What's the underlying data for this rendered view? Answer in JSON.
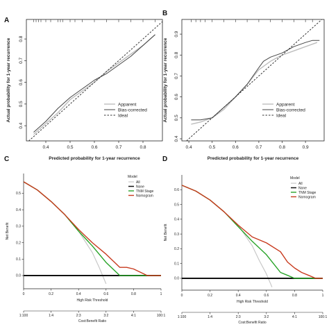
{
  "colors": {
    "apparent": "#bdbdbd",
    "bias_corrected": "#444444",
    "ideal": "#333333",
    "all": "#c8c8c8",
    "none": "#111111",
    "tnm": "#27a327",
    "nomogram": "#c83a1e"
  },
  "chart_data": [
    {
      "panel": "A",
      "type": "line",
      "xlabel": "Predicted probability for 1-year recurrence",
      "ylabel": "Actual probability for 1-year recurrence",
      "xlim": [
        0.32,
        0.88
      ],
      "ylim": [
        0.33,
        0.89
      ],
      "xticks": [
        "0.4",
        "0.5",
        "0.6",
        "0.7",
        "0.8"
      ],
      "yticks": [
        "0.4",
        "0.5",
        "0.6",
        "0.7",
        "0.8"
      ],
      "legend_position": "bottom-right",
      "series": [
        {
          "name": "Apparent",
          "style": "apparent",
          "x": [
            0.35,
            0.4,
            0.45,
            0.5,
            0.55,
            0.6,
            0.65,
            0.7,
            0.75,
            0.8,
            0.85
          ],
          "y": [
            0.36,
            0.41,
            0.46,
            0.52,
            0.56,
            0.6,
            0.65,
            0.69,
            0.73,
            0.77,
            0.82
          ]
        },
        {
          "name": "Bias-corrected",
          "style": "bias_corrected",
          "x": [
            0.35,
            0.4,
            0.45,
            0.5,
            0.55,
            0.6,
            0.65,
            0.7,
            0.75,
            0.8,
            0.85
          ],
          "y": [
            0.37,
            0.42,
            0.48,
            0.53,
            0.57,
            0.61,
            0.64,
            0.68,
            0.72,
            0.77,
            0.82
          ]
        },
        {
          "name": "Ideal",
          "style": "ideal",
          "x": [
            0.32,
            0.88
          ],
          "y": [
            0.32,
            0.88
          ]
        }
      ],
      "rug_x": [
        0.35,
        0.36,
        0.37,
        0.38,
        0.4,
        0.42,
        0.45,
        0.46,
        0.47,
        0.5,
        0.52,
        0.55,
        0.6,
        0.65,
        0.7,
        0.75,
        0.8,
        0.85
      ]
    },
    {
      "panel": "B",
      "type": "line",
      "xlabel": "Predicted probability for 1-year recurrence",
      "ylabel": "Actual probability for 1-year recurrence",
      "xlim": [
        0.37,
        0.98
      ],
      "ylim": [
        0.39,
        0.97
      ],
      "xticks": [
        "0.4",
        "0.5",
        "0.6",
        "0.7",
        "0.8",
        "0.9"
      ],
      "yticks": [
        "0.4",
        "0.5",
        "0.6",
        "0.7",
        "0.8",
        "0.9"
      ],
      "legend_position": "bottom-right",
      "series": [
        {
          "name": "Apparent",
          "style": "apparent",
          "x": [
            0.41,
            0.45,
            0.5,
            0.55,
            0.6,
            0.65,
            0.7,
            0.75,
            0.8,
            0.85,
            0.9,
            0.95
          ],
          "y": [
            0.47,
            0.48,
            0.5,
            0.54,
            0.6,
            0.66,
            0.73,
            0.77,
            0.8,
            0.82,
            0.84,
            0.86
          ]
        },
        {
          "name": "Bias-corrected",
          "style": "bias_corrected",
          "x": [
            0.41,
            0.45,
            0.5,
            0.55,
            0.6,
            0.65,
            0.7,
            0.72,
            0.75,
            0.8,
            0.85,
            0.9,
            0.93,
            0.96
          ],
          "y": [
            0.49,
            0.49,
            0.5,
            0.55,
            0.6,
            0.66,
            0.74,
            0.77,
            0.79,
            0.81,
            0.84,
            0.86,
            0.87,
            0.87
          ]
        },
        {
          "name": "Ideal",
          "style": "ideal",
          "x": [
            0.37,
            0.98
          ],
          "y": [
            0.37,
            0.98
          ]
        }
      ],
      "rug_x": [
        0.41,
        0.43,
        0.45,
        0.47,
        0.5,
        0.55,
        0.6,
        0.65,
        0.7,
        0.75,
        0.8,
        0.85,
        0.9,
        0.93
      ]
    },
    {
      "panel": "C",
      "type": "line",
      "xlabel": "High Risk Threshold",
      "x2label": "Cost:Benefit Ratio",
      "ylabel": "Net Benefit",
      "xlim": [
        0,
        1
      ],
      "ylim": [
        -0.08,
        0.62
      ],
      "xticks": [
        "0",
        "0.2",
        "0.4",
        "0.6",
        "0.8",
        "1"
      ],
      "x2ticks": [
        "1:100",
        "1:4",
        "2:3",
        "3:2",
        "4:1",
        "100:1"
      ],
      "yticks": [
        "0.0",
        "0.1",
        "0.2",
        "0.3",
        "0.4",
        "0.5"
      ],
      "legend_title": "Model",
      "legend_position": "top-right",
      "series": [
        {
          "name": "All",
          "style": "all",
          "x": [
            0,
            0.1,
            0.2,
            0.3,
            0.4,
            0.5,
            0.55,
            0.6
          ],
          "y": [
            0.57,
            0.52,
            0.45,
            0.37,
            0.27,
            0.14,
            0.05,
            -0.05
          ]
        },
        {
          "name": "None",
          "style": "none",
          "x": [
            0,
            1
          ],
          "y": [
            0,
            0
          ]
        },
        {
          "name": "TNM Stage",
          "style": "tnm",
          "x": [
            0,
            0.1,
            0.2,
            0.3,
            0.4,
            0.5,
            0.6,
            0.7,
            0.8,
            1.0
          ],
          "y": [
            0.57,
            0.52,
            0.45,
            0.37,
            0.27,
            0.18,
            0.08,
            0.0,
            0.0,
            0.0
          ]
        },
        {
          "name": "Nomogram",
          "style": "nomogram",
          "x": [
            0,
            0.1,
            0.2,
            0.3,
            0.4,
            0.5,
            0.6,
            0.7,
            0.75,
            0.8,
            0.85,
            0.9,
            1.0
          ],
          "y": [
            0.57,
            0.52,
            0.45,
            0.37,
            0.28,
            0.2,
            0.13,
            0.05,
            0.05,
            0.04,
            0.02,
            0.0,
            0.0
          ]
        }
      ]
    },
    {
      "panel": "D",
      "type": "line",
      "xlabel": "High Risk Threshold",
      "x2label": "Cost:Benefit Ratio",
      "ylabel": "Net Benefit",
      "xlim": [
        0,
        1
      ],
      "ylim": [
        -0.08,
        0.7
      ],
      "xticks": [
        "0",
        "0.2",
        "0.4",
        "0.6",
        "0.8",
        "1"
      ],
      "x2ticks": [
        "1:100",
        "1:4",
        "2:3",
        "3:2",
        "4:1",
        "100:1"
      ],
      "yticks": [
        "0.0",
        "0.1",
        "0.2",
        "0.3",
        "0.4",
        "0.5",
        "0.6"
      ],
      "legend_title": "Model",
      "legend_position": "top-right",
      "series": [
        {
          "name": "All",
          "style": "all",
          "x": [
            0,
            0.1,
            0.2,
            0.3,
            0.4,
            0.5,
            0.55,
            0.6,
            0.64
          ],
          "y": [
            0.63,
            0.59,
            0.53,
            0.45,
            0.36,
            0.22,
            0.12,
            0.03,
            -0.06
          ]
        },
        {
          "name": "None",
          "style": "none",
          "x": [
            0,
            1
          ],
          "y": [
            0,
            0
          ]
        },
        {
          "name": "TNM Stage",
          "style": "tnm",
          "x": [
            0,
            0.1,
            0.2,
            0.3,
            0.4,
            0.5,
            0.6,
            0.7,
            0.75,
            0.8,
            1.0
          ],
          "y": [
            0.63,
            0.59,
            0.53,
            0.45,
            0.35,
            0.25,
            0.16,
            0.04,
            0.02,
            0.0,
            0.0
          ]
        },
        {
          "name": "Nomogram",
          "style": "nomogram",
          "x": [
            0,
            0.1,
            0.2,
            0.3,
            0.4,
            0.5,
            0.6,
            0.7,
            0.75,
            0.8,
            0.85,
            0.9,
            0.95,
            1.0
          ],
          "y": [
            0.63,
            0.59,
            0.53,
            0.45,
            0.36,
            0.28,
            0.24,
            0.18,
            0.11,
            0.07,
            0.04,
            0.02,
            0.0,
            0.0
          ]
        }
      ]
    }
  ]
}
